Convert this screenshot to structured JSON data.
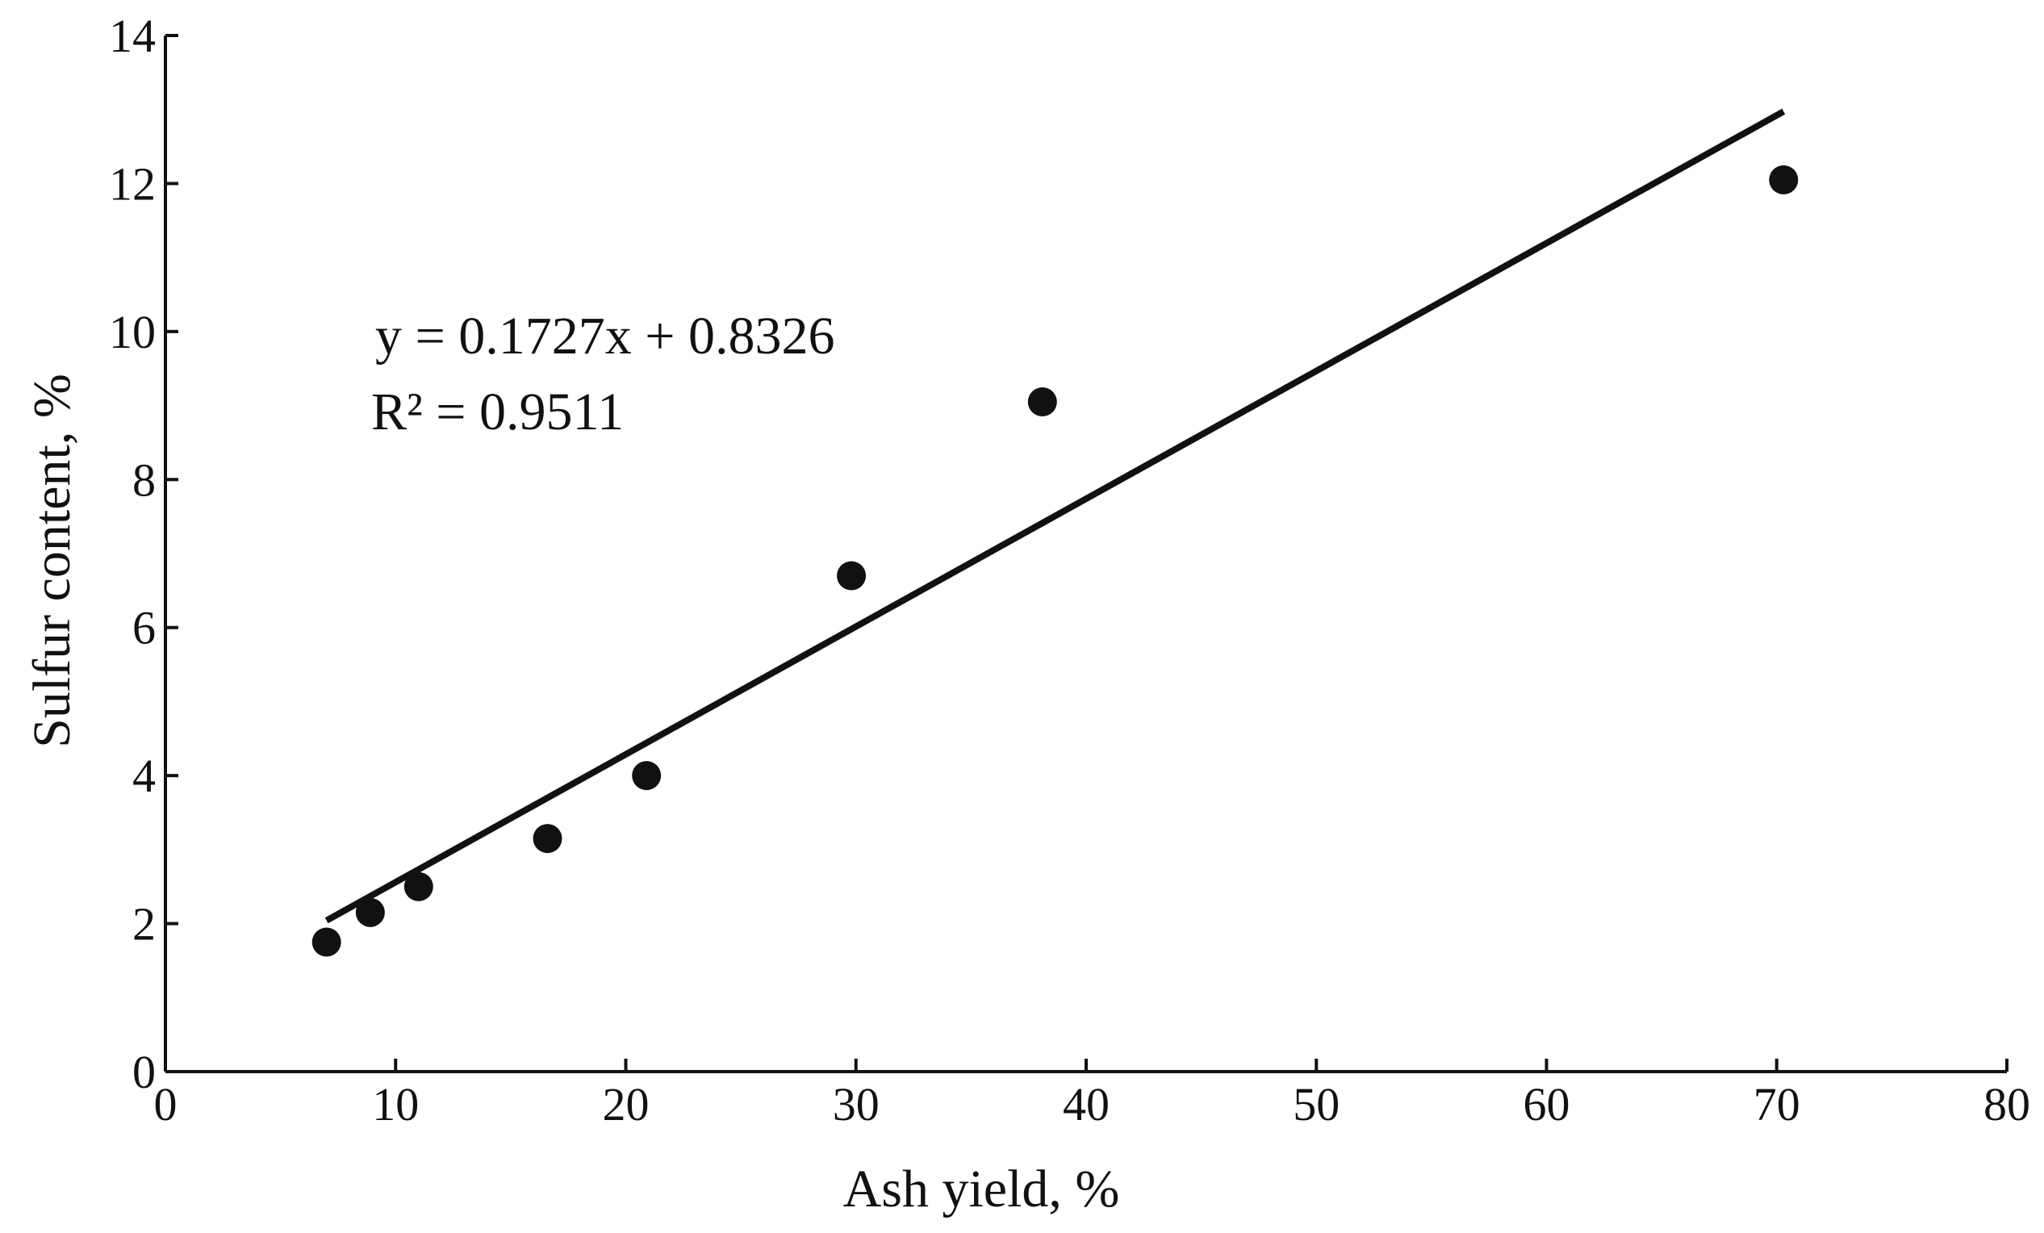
{
  "chart_data": {
    "type": "scatter",
    "title": "",
    "xlabel": "Ash yield, %",
    "ylabel": "Sulfur content, %",
    "xlim": [
      0,
      80
    ],
    "ylim": [
      0,
      14
    ],
    "x_ticks": [
      0,
      10,
      20,
      30,
      40,
      50,
      60,
      70,
      80
    ],
    "y_ticks": [
      0,
      2,
      4,
      6,
      8,
      10,
      12,
      14
    ],
    "grid": false,
    "legend": "none",
    "series": [
      {
        "x": [
          7.0,
          8.9,
          11.0,
          16.6,
          20.9,
          29.8,
          38.1,
          70.3
        ],
        "y": [
          1.75,
          2.15,
          2.5,
          3.15,
          4.0,
          6.7,
          9.05,
          12.05
        ]
      }
    ],
    "trendline": {
      "slope": 0.1727,
      "intercept": 0.8326,
      "x_range": [
        7.0,
        70.3
      ],
      "equation": "y = 0.1727x + 0.8326",
      "r_squared": "R² = 0.9511"
    },
    "colors": {
      "marker": "#111111",
      "line": "#111111",
      "axis": "#111111"
    }
  }
}
